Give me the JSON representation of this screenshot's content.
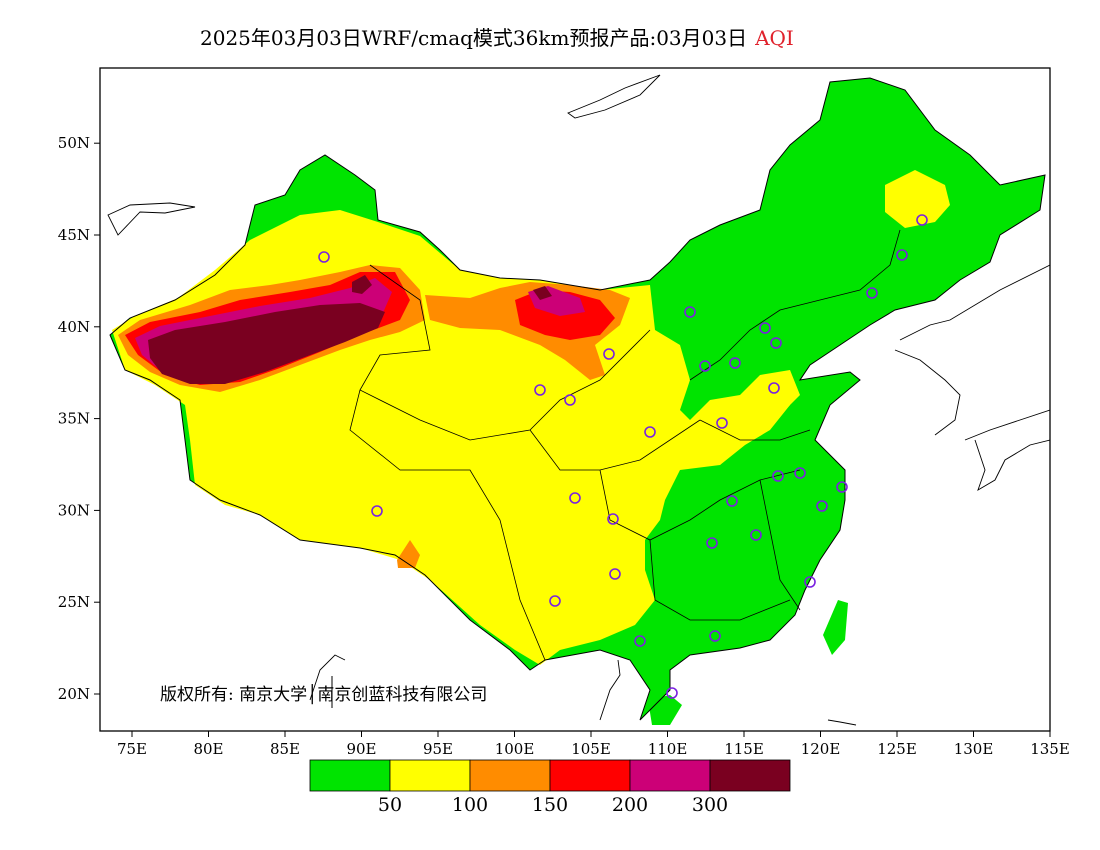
{
  "title": {
    "main": "2025年03月03日WRF/cmaq模式36km预报产品:03月03日",
    "variable": "AQI"
  },
  "axes": {
    "x_ticks": [
      "75E",
      "80E",
      "85E",
      "90E",
      "95E",
      "100E",
      "105E",
      "110E",
      "115E",
      "120E",
      "125E",
      "130E",
      "135E"
    ],
    "y_ticks": [
      "20N",
      "25N",
      "30N",
      "35N",
      "40N",
      "45N",
      "50N"
    ]
  },
  "legend": {
    "colors": [
      "#00e400",
      "#ffff00",
      "#ff8c00",
      "#ff0000",
      "#cc0077",
      "#7a0020"
    ],
    "labels": [
      "50",
      "100",
      "150",
      "200",
      "300"
    ]
  },
  "copyright": "版权所有: 南京大学│南京创蓝科技有限公司"
}
